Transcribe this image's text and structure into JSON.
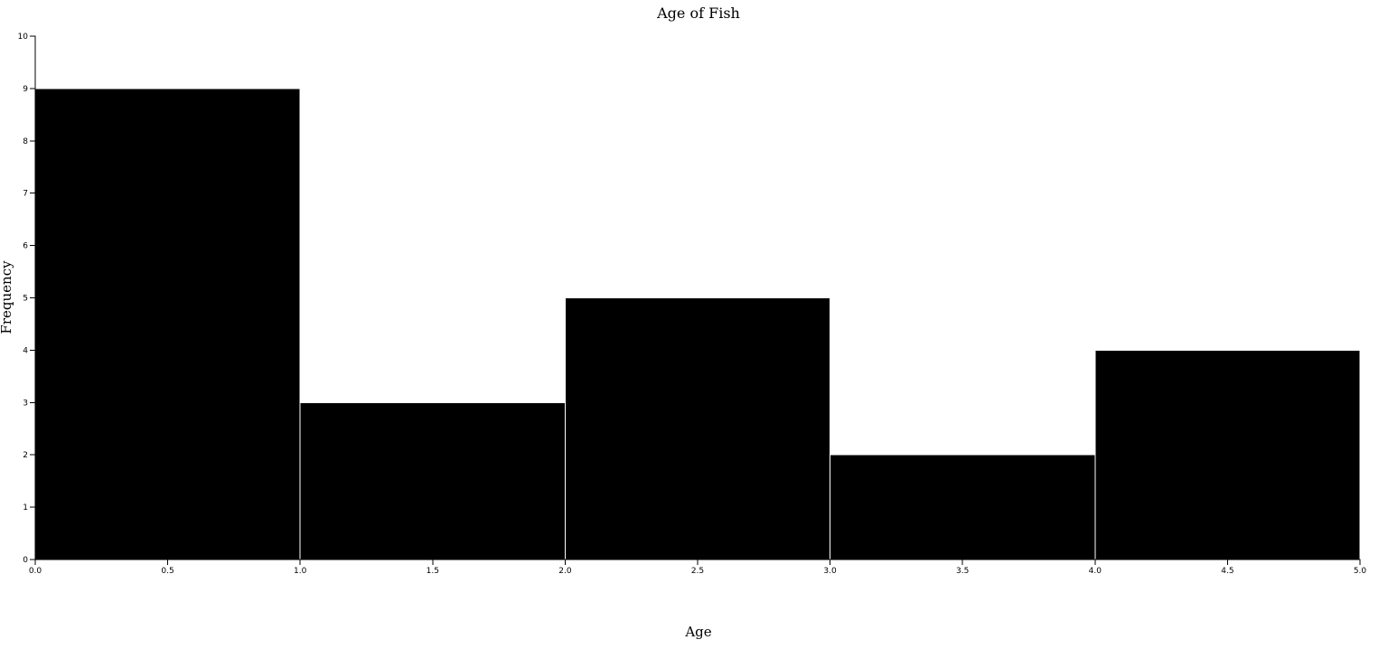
{
  "chart_data": {
    "type": "bar",
    "title": "Age of Fish",
    "xlabel": "Age",
    "ylabel": "Frequency",
    "bins": [
      {
        "x0": 0,
        "x1": 1,
        "value": 9
      },
      {
        "x0": 1,
        "x1": 2,
        "value": 3
      },
      {
        "x0": 2,
        "x1": 3,
        "value": 5
      },
      {
        "x0": 3,
        "x1": 4,
        "value": 2
      },
      {
        "x0": 4,
        "x1": 5,
        "value": 4
      }
    ],
    "xlim": [
      0,
      5
    ],
    "ylim": [
      0,
      10
    ],
    "x_ticks": [
      "0.0",
      "0.5",
      "1.0",
      "1.5",
      "2.0",
      "2.5",
      "3.0",
      "3.5",
      "4.0",
      "4.5",
      "5.0"
    ],
    "y_ticks": [
      "0",
      "1",
      "2",
      "3",
      "4",
      "5",
      "6",
      "7",
      "8",
      "9",
      "10"
    ],
    "grid": false,
    "legend": "none",
    "colors": {
      "bar_fill": "#000000",
      "bar_stroke": "#ffffff",
      "axis": "#000000",
      "background": "#ffffff"
    }
  }
}
